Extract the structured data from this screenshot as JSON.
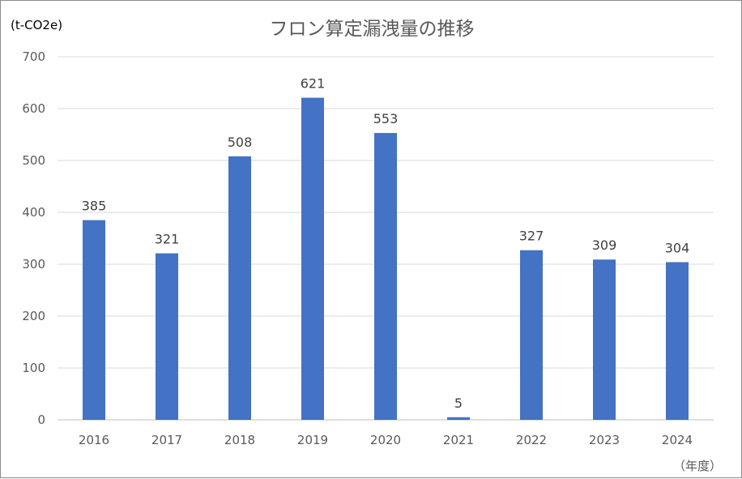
{
  "chart_data": {
    "type": "bar",
    "title": "フロン算定漏洩量の推移",
    "ylabel": "(t-CO2e)",
    "xlabel": "（年度）",
    "categories": [
      "2016",
      "2017",
      "2018",
      "2019",
      "2020",
      "2021",
      "2022",
      "2023",
      "2024"
    ],
    "values": [
      385,
      321,
      508,
      621,
      553,
      5,
      327,
      309,
      304
    ],
    "ylim": [
      0,
      700
    ],
    "yticks": [
      0,
      100,
      200,
      300,
      400,
      500,
      600,
      700
    ],
    "grid": true,
    "legend": "none",
    "bar_color": "#4472c4",
    "grid_color": "#d9d9d9"
  }
}
